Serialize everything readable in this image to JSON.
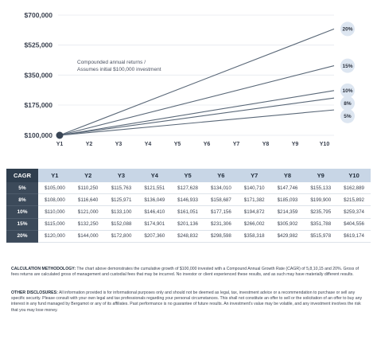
{
  "chart_data": {
    "type": "line",
    "categories": [
      "Y1",
      "Y2",
      "Y3",
      "Y4",
      "Y5",
      "Y6",
      "Y7",
      "Y8",
      "Y9",
      "Y10"
    ],
    "y_ticks": [
      "$700,000",
      "$525,000",
      "$350,000",
      "$175,000",
      "$100,000"
    ],
    "ylim": [
      0,
      700000
    ],
    "annotation": [
      "Compounded annual returns /",
      "Assumes initial $100,000 investment"
    ],
    "series": [
      {
        "name": "5%",
        "values": [
          105000,
          110250,
          115763,
          121551,
          127628,
          134010,
          140710,
          147746,
          155133,
          162889
        ]
      },
      {
        "name": "8%",
        "values": [
          108000,
          116640,
          125971,
          136049,
          146933,
          158687,
          171382,
          185093,
          199900,
          215892
        ]
      },
      {
        "name": "10%",
        "values": [
          110000,
          121000,
          133100,
          146410,
          161051,
          177156,
          194872,
          214359,
          235795,
          259374
        ]
      },
      {
        "name": "15%",
        "values": [
          115000,
          132250,
          152088,
          174901,
          201136,
          231306,
          266002,
          305902,
          351788,
          404556
        ]
      },
      {
        "name": "20%",
        "values": [
          120000,
          144000,
          172800,
          207360,
          248832,
          298598,
          358318,
          429982,
          515978,
          619174
        ]
      }
    ],
    "line_color": "#5a6878",
    "marker_color": "#3a4656",
    "badge_color": "#dde6f1"
  },
  "table": {
    "corner": "CAGR",
    "headers": [
      "Y1",
      "Y2",
      "Y3",
      "Y4",
      "Y5",
      "Y6",
      "Y7",
      "Y8",
      "Y9",
      "Y10"
    ],
    "rows": [
      {
        "rate": "5%",
        "cells": [
          "$105,000",
          "$110,250",
          "$115,763",
          "$121,551",
          "$127,628",
          "$134,010",
          "$140,710",
          "$147,746",
          "$155,133",
          "$162,889"
        ]
      },
      {
        "rate": "8%",
        "cells": [
          "$108,000",
          "$116,640",
          "$125,971",
          "$136,049",
          "$146,933",
          "$158,687",
          "$171,382",
          "$185,093",
          "$199,900",
          "$215,892"
        ]
      },
      {
        "rate": "10%",
        "cells": [
          "$110,000",
          "$121,000",
          "$133,100",
          "$146,410",
          "$161,051",
          "$177,156",
          "$194,872",
          "$214,359",
          "$235,795",
          "$259,374"
        ]
      },
      {
        "rate": "15%",
        "cells": [
          "$115,000",
          "$132,250",
          "$152,088",
          "$174,901",
          "$201,136",
          "$231,306",
          "$266,002",
          "$305,902",
          "$351,788",
          "$404,556"
        ]
      },
      {
        "rate": "20%",
        "cells": [
          "$120,000",
          "$144,000",
          "$172,800",
          "$207,360",
          "$248,832",
          "$298,598",
          "$358,318",
          "$429,982",
          "$515,978",
          "$619,174"
        ]
      }
    ]
  },
  "methodology": {
    "label": "CALCULATION METHODOLOGY:",
    "text": " The chart above demonstrates the cumulative growth of $100,000 invested with a Compound Annual Growth Rate (CAGR) of 5,8,10,15 and 20%. Gross of fees returns are calculated gross of management and custodial fees that may be incurred. No investor or client experienced these results, and as such may have materially different results."
  },
  "disclosures": {
    "label": "OTHER DISCLOSURES:",
    "text": " All information provided is for informational purposes only and should not be deemed as legal, tax, investment advice or a recommendation to purchase or sell any specific security. Please consult with your own legal and tax professionals regarding your personal circumstances. This shall not constitute an offer to sell or the solicitation of an offer to buy any interest in any fund managed by Bergamot or any of its affiliates. Past performance is no guarantee of future results. An investment's value may be volatile, and any investment involves the risk that you may lose money."
  }
}
